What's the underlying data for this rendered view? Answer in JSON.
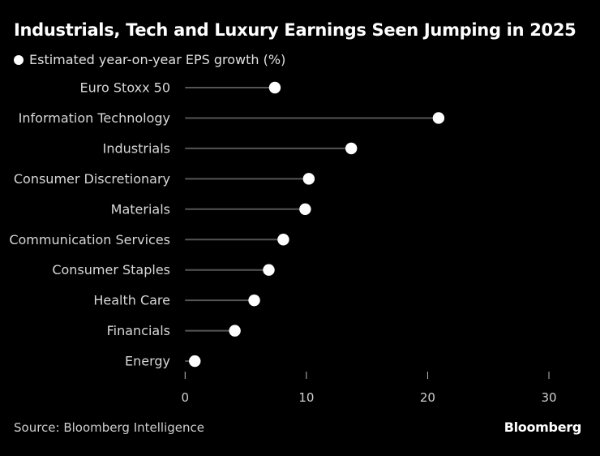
{
  "header": {
    "title": "Industrials, Tech and Luxury Earnings Seen Jumping in 2025"
  },
  "footer": {
    "source": "Source: Bloomberg Intelligence",
    "brand": "Bloomberg"
  },
  "colors": {
    "background": "#000000",
    "dot": "#ffffff",
    "stem": "#555555",
    "text": "#d8d8d8"
  },
  "chart_data": {
    "type": "lollipop",
    "title": "Industrials, Tech and Luxury Earnings Seen Jumping in 2025",
    "legend": [
      {
        "name": "Estimated year-on-year EPS growth (%)",
        "marker": "circle",
        "color": "#ffffff"
      }
    ],
    "legend_position": "top-left",
    "categories": [
      "Euro Stoxx 50",
      "Information Technology",
      "Industrials",
      "Consumer Discretionary",
      "Materials",
      "Communication Services",
      "Consumer Staples",
      "Health Care",
      "Financials",
      "Energy"
    ],
    "series": [
      {
        "name": "Estimated year-on-year EPS growth (%)",
        "values": [
          7.4,
          20.9,
          13.7,
          10.2,
          9.9,
          8.1,
          6.9,
          5.7,
          4.1,
          0.8
        ]
      }
    ],
    "xlabel": "",
    "ylabel": "",
    "xlim": [
      0,
      30
    ],
    "xticks": [
      0,
      10,
      20,
      30
    ],
    "xtick_labels": [
      "0",
      "10",
      "20",
      "30"
    ],
    "grid": false,
    "orientation": "horizontal",
    "source": "Source: Bloomberg Intelligence"
  }
}
